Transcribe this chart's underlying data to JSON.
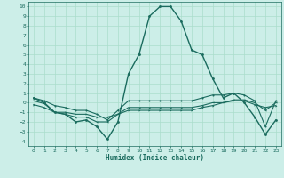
{
  "title": "",
  "xlabel": "Humidex (Indice chaleur)",
  "bg_color": "#cceee8",
  "line_color": "#1a6b5e",
  "grid_color": "#aaddcc",
  "xlim": [
    -0.5,
    23.5
  ],
  "ylim": [
    -4.5,
    10.5
  ],
  "yticks": [
    -4,
    -3,
    -2,
    -1,
    0,
    1,
    2,
    3,
    4,
    5,
    6,
    7,
    8,
    9,
    10
  ],
  "xticks": [
    0,
    1,
    2,
    3,
    4,
    5,
    6,
    7,
    8,
    9,
    10,
    11,
    12,
    13,
    14,
    15,
    16,
    17,
    18,
    19,
    20,
    21,
    22,
    23
  ],
  "line1_x": [
    0,
    1,
    2,
    3,
    4,
    5,
    6,
    7,
    8,
    9,
    10,
    11,
    12,
    13,
    14,
    15,
    16,
    17,
    18,
    19,
    20,
    21,
    22,
    23
  ],
  "line1_y": [
    0.5,
    0.0,
    -1.0,
    -1.2,
    -2.0,
    -1.8,
    -2.5,
    -3.8,
    -2.0,
    3.0,
    5.0,
    9.0,
    10.0,
    10.0,
    8.5,
    5.5,
    5.0,
    2.5,
    0.5,
    1.0,
    0.0,
    -1.5,
    -3.3,
    -1.8
  ],
  "line2_x": [
    0,
    1,
    2,
    3,
    4,
    5,
    6,
    7,
    8,
    9,
    10,
    11,
    12,
    13,
    14,
    15,
    16,
    17,
    18,
    19,
    20,
    21,
    22,
    23
  ],
  "line2_y": [
    -0.2,
    -0.5,
    -1.0,
    -1.0,
    -1.2,
    -1.2,
    -1.5,
    -1.5,
    -1.2,
    -0.8,
    -0.8,
    -0.8,
    -0.8,
    -0.8,
    -0.8,
    -0.8,
    -0.5,
    -0.3,
    0.0,
    0.2,
    0.2,
    -0.2,
    -0.5,
    -0.3
  ],
  "line3_x": [
    0,
    1,
    2,
    3,
    4,
    5,
    6,
    7,
    8,
    9,
    10,
    11,
    12,
    13,
    14,
    15,
    16,
    17,
    18,
    19,
    20,
    21,
    22,
    23
  ],
  "line3_y": [
    0.2,
    -0.1,
    -1.0,
    -1.2,
    -1.5,
    -1.5,
    -2.0,
    -2.0,
    -1.2,
    -0.5,
    -0.5,
    -0.5,
    -0.5,
    -0.5,
    -0.5,
    -0.5,
    -0.3,
    0.0,
    0.0,
    0.3,
    0.3,
    0.0,
    -0.8,
    0.0
  ],
  "line4_x": [
    0,
    1,
    2,
    3,
    4,
    5,
    6,
    7,
    8,
    9,
    10,
    11,
    12,
    13,
    14,
    15,
    16,
    17,
    18,
    19,
    20,
    21,
    22,
    23
  ],
  "line4_y": [
    0.5,
    0.2,
    -0.3,
    -0.5,
    -0.8,
    -0.8,
    -1.2,
    -1.8,
    -0.8,
    0.2,
    0.2,
    0.2,
    0.2,
    0.2,
    0.2,
    0.2,
    0.5,
    0.8,
    0.8,
    1.0,
    0.8,
    0.2,
    -2.5,
    0.2
  ]
}
